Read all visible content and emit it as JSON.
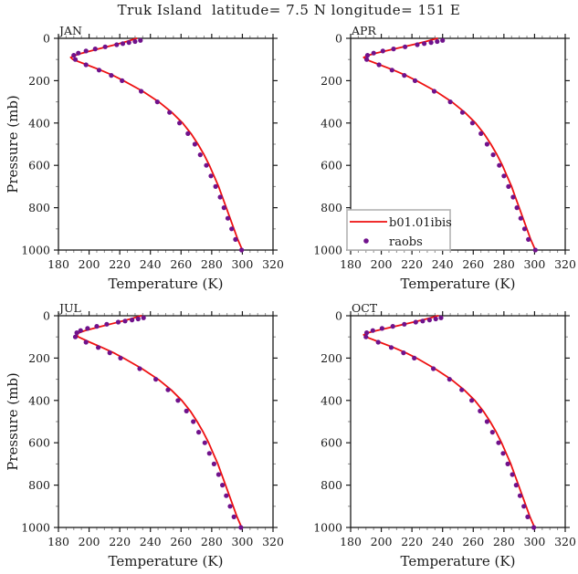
{
  "title": "Truk Island  latitude= 7.5 N longitude= 151 E",
  "colors": {
    "model_line": "#ee1111",
    "raobs_dot": "#70128c",
    "axis": "#1a1a1a",
    "minor_tick": "#8c8c8c",
    "legend_border": "#b3b3b3",
    "legend_fill": "#ffffff"
  },
  "axes": {
    "xlabel": "Temperature (K)",
    "ylabel": "Pressure (mb)",
    "xlim": [
      180,
      320
    ],
    "ylim": [
      0,
      1000
    ],
    "xticks": [
      180,
      200,
      220,
      240,
      260,
      280,
      300,
      320
    ],
    "yticks": [
      0,
      200,
      400,
      600,
      800,
      1000
    ],
    "x_minor_step": 5,
    "y_minor_step": 100
  },
  "legend": {
    "entries": [
      {
        "label": "b01.01ibis",
        "marker": "line"
      },
      {
        "label": "raobs",
        "marker": "dot"
      }
    ]
  },
  "chart_data": [
    {
      "panel": "JAN",
      "type": "line+scatter",
      "show_legend": false,
      "series": [
        {
          "name": "b01.01ibis",
          "style": "line",
          "pressure_mb": [
            0,
            15,
            30,
            50,
            70,
            80,
            90,
            100,
            125,
            150,
            175,
            200,
            250,
            300,
            350,
            400,
            450,
            500,
            550,
            600,
            650,
            700,
            750,
            800,
            850,
            900,
            950,
            1000
          ],
          "temperature_k": [
            231,
            224.5,
            217,
            206,
            195.5,
            191,
            188,
            189.5,
            198.5,
            207.5,
            215.5,
            222.5,
            235,
            245.5,
            254,
            261,
            266.5,
            271,
            275,
            278.5,
            281.5,
            284.5,
            287,
            289.5,
            292,
            294.5,
            297,
            300
          ]
        },
        {
          "name": "raobs",
          "style": "scatter",
          "pressure_mb": [
            10,
            15,
            20,
            25,
            30,
            40,
            50,
            60,
            70,
            80,
            100,
            125,
            150,
            175,
            200,
            250,
            300,
            350,
            400,
            450,
            500,
            550,
            600,
            650,
            700,
            750,
            800,
            850,
            900,
            950,
            1000
          ],
          "temperature_k": [
            233.5,
            230,
            226,
            222,
            218,
            210.5,
            204,
            198,
            193,
            190,
            191,
            198,
            206.5,
            214.5,
            221.5,
            234,
            244.5,
            252.5,
            259,
            264.5,
            269,
            272.5,
            276.5,
            279.5,
            282.5,
            285.5,
            288,
            290.5,
            293,
            295.5,
            299.5
          ]
        }
      ]
    },
    {
      "panel": "APR",
      "type": "line+scatter",
      "show_legend": true,
      "series": [
        {
          "name": "b01.01ibis",
          "style": "line",
          "pressure_mb": [
            0,
            15,
            30,
            50,
            70,
            80,
            90,
            100,
            125,
            150,
            175,
            200,
            250,
            300,
            350,
            400,
            450,
            500,
            550,
            600,
            650,
            700,
            750,
            800,
            850,
            900,
            950,
            1000
          ],
          "temperature_k": [
            236.5,
            229,
            220.5,
            208.5,
            196.5,
            191.5,
            188.5,
            190,
            199,
            208,
            216,
            223,
            235.5,
            246,
            254.5,
            261.5,
            267,
            271.5,
            275.5,
            279,
            282,
            285,
            287.5,
            290,
            292.5,
            295,
            297.5,
            300.5
          ]
        },
        {
          "name": "raobs",
          "style": "scatter",
          "pressure_mb": [
            10,
            15,
            20,
            25,
            30,
            40,
            50,
            60,
            70,
            80,
            100,
            125,
            150,
            175,
            200,
            250,
            300,
            350,
            400,
            450,
            500,
            550,
            600,
            650,
            700,
            750,
            800,
            850,
            900,
            950,
            1000
          ],
          "temperature_k": [
            240,
            236.5,
            232.5,
            228,
            223.5,
            215.5,
            208,
            201,
            195,
            191,
            190.5,
            198.5,
            207,
            215,
            222,
            234.5,
            245,
            253,
            259.5,
            265,
            269,
            273,
            277,
            280,
            283,
            286,
            288.5,
            291,
            293.5,
            296,
            300.5
          ]
        }
      ]
    },
    {
      "panel": "JUL",
      "type": "line+scatter",
      "show_legend": false,
      "series": [
        {
          "name": "b01.01ibis",
          "style": "line",
          "pressure_mb": [
            0,
            15,
            30,
            50,
            70,
            80,
            90,
            100,
            125,
            150,
            175,
            200,
            250,
            300,
            350,
            400,
            450,
            500,
            550,
            600,
            650,
            700,
            750,
            800,
            850,
            900,
            950,
            1000
          ],
          "temperature_k": [
            234,
            227,
            219,
            208,
            197.5,
            193.5,
            192,
            193,
            200.5,
            208.5,
            216,
            222.5,
            234.5,
            245,
            253.5,
            260.5,
            266,
            270.5,
            274.5,
            278,
            281,
            284,
            286.5,
            289,
            291.5,
            294,
            296.5,
            299.5
          ]
        },
        {
          "name": "raobs",
          "style": "scatter",
          "pressure_mb": [
            10,
            15,
            20,
            25,
            30,
            40,
            50,
            60,
            70,
            80,
            100,
            125,
            150,
            175,
            200,
            250,
            300,
            350,
            400,
            450,
            500,
            550,
            600,
            650,
            700,
            750,
            800,
            850,
            900,
            950,
            1000
          ],
          "temperature_k": [
            235.5,
            232,
            228,
            223.5,
            219,
            211.5,
            205,
            199,
            194.5,
            192,
            191,
            198,
            206,
            213.5,
            220.5,
            233,
            243.5,
            251.5,
            258,
            263.5,
            268,
            271.5,
            275.5,
            278.5,
            281.5,
            284.5,
            287,
            289.5,
            292,
            294.5,
            299
          ]
        }
      ]
    },
    {
      "panel": "OCT",
      "type": "line+scatter",
      "show_legend": false,
      "series": [
        {
          "name": "b01.01ibis",
          "style": "line",
          "pressure_mb": [
            0,
            15,
            30,
            50,
            70,
            80,
            90,
            100,
            125,
            150,
            175,
            200,
            250,
            300,
            350,
            400,
            450,
            500,
            550,
            600,
            650,
            700,
            750,
            800,
            850,
            900,
            950,
            1000
          ],
          "temperature_k": [
            237,
            229.5,
            221,
            209,
            197,
            191.5,
            188.5,
            190,
            199,
            208,
            216,
            223,
            235,
            245.5,
            254,
            261,
            266.5,
            271,
            275,
            278.5,
            281.5,
            284.5,
            287,
            289.5,
            292,
            294.5,
            297,
            300
          ]
        },
        {
          "name": "raobs",
          "style": "scatter",
          "pressure_mb": [
            10,
            15,
            20,
            25,
            30,
            40,
            50,
            60,
            70,
            80,
            100,
            125,
            150,
            175,
            200,
            250,
            300,
            350,
            400,
            450,
            500,
            550,
            600,
            650,
            700,
            750,
            800,
            850,
            900,
            950,
            1000
          ],
          "temperature_k": [
            239,
            235.5,
            231.5,
            227,
            222.5,
            215,
            207.5,
            200.5,
            194.5,
            190.5,
            190,
            198,
            206.5,
            214.5,
            221.5,
            234,
            244.5,
            252.5,
            259,
            264.5,
            269,
            272.5,
            276.5,
            279.5,
            282.5,
            285.5,
            288,
            290.5,
            293,
            295.5,
            299.5
          ]
        }
      ]
    }
  ]
}
